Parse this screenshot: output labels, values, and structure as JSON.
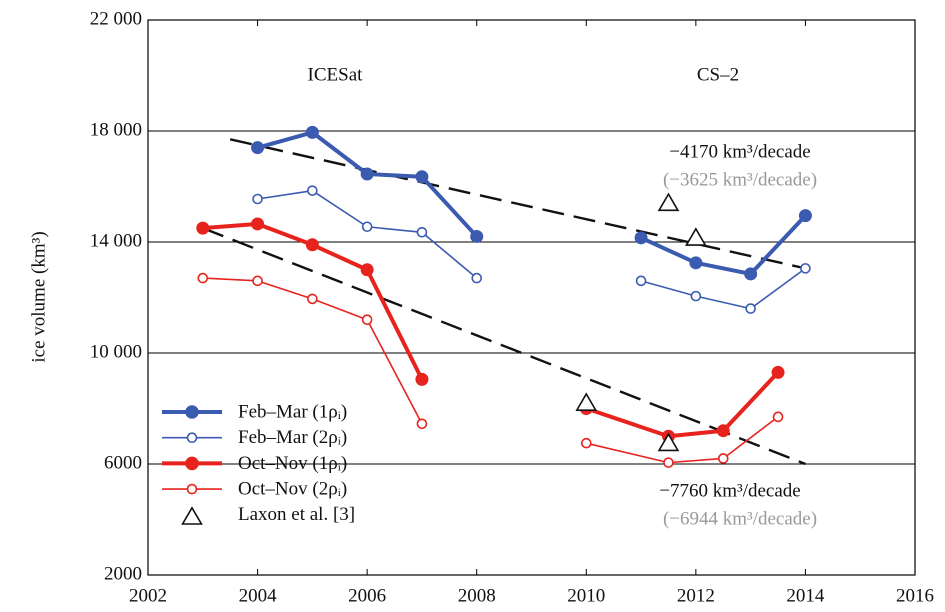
{
  "chart_data": {
    "type": "line",
    "y_label": "ice volume (km³)",
    "annotations": [
      "ICESat",
      "CS–2",
      "−4170 km³/decade",
      "(−3625 km³/decade)",
      "−7760 km³/decade",
      "(−6944 km³/decade)"
    ],
    "annotation_colors": [
      "#111111",
      "#111111",
      "#111111",
      "#999999",
      "#111111",
      "#999999"
    ],
    "xlim": [
      2002,
      2016
    ],
    "xticks": [
      2002,
      2004,
      2006,
      2008,
      2010,
      2012,
      2014,
      2016
    ],
    "ylim": [
      2000,
      22000
    ],
    "yticks": [
      {
        "value": 2000,
        "label": "2000"
      },
      {
        "value": 6000,
        "label": "6000"
      },
      {
        "value": 10000,
        "label": "10 000"
      },
      {
        "value": 14000,
        "label": "14 000"
      },
      {
        "value": 18000,
        "label": "18 000"
      },
      {
        "value": 22000,
        "label": "22 000"
      }
    ],
    "grid": true,
    "legend": "lower left",
    "series": [
      {
        "name": "Feb–Mar (1ρᵢ)",
        "color": "#3a5bb0",
        "marker": "filled",
        "line_width": 4,
        "x": [
          2004,
          2005,
          2006,
          2007,
          2008,
          null,
          2011,
          2012,
          2013,
          2014
        ],
        "values": [
          17400,
          17950,
          16450,
          16350,
          14200,
          null,
          14150,
          13250,
          12850,
          14950
        ]
      },
      {
        "name": "Feb–Mar (2ρᵢ)",
        "color": "#3a5bb0",
        "marker": "open",
        "line_width": 1.6,
        "x": [
          2004,
          2005,
          2006,
          2007,
          2008,
          null,
          2011,
          2012,
          2013,
          2014
        ],
        "values": [
          15550,
          15850,
          14550,
          14350,
          12700,
          null,
          12600,
          12050,
          11600,
          13050
        ]
      },
      {
        "name": "Oct–Nov (1ρᵢ)",
        "color": "#e8231e",
        "marker": "filled",
        "line_width": 4,
        "x": [
          2003,
          2004,
          2005,
          2006,
          2007,
          null,
          2010,
          2011.5,
          2012.5,
          2013.5
        ],
        "values": [
          14500,
          14650,
          13900,
          13000,
          9050,
          null,
          8000,
          7000,
          7200,
          9300
        ]
      },
      {
        "name": "Oct–Nov (2ρᵢ)",
        "color": "#e8231e",
        "marker": "open",
        "line_width": 1.6,
        "x": [
          2003,
          2004,
          2005,
          2006,
          2007,
          null,
          2010,
          2011.5,
          2012.5,
          2013.5
        ],
        "values": [
          12700,
          12600,
          11950,
          11200,
          7450,
          null,
          6750,
          6050,
          6200,
          7700
        ]
      },
      {
        "name": "Laxon et al. [3]",
        "color": "#111111",
        "marker": "triangle",
        "line_width": 0,
        "x": [
          2010,
          2011.5,
          2011.5,
          2012
        ],
        "values": [
          8200,
          15400,
          6750,
          14150
        ]
      }
    ],
    "trend_lines": [
      {
        "x": [
          2003.5,
          2014
        ],
        "values": [
          17700,
          13050
        ]
      },
      {
        "x": [
          2003,
          2014
        ],
        "values": [
          14500,
          6000
        ]
      }
    ]
  }
}
